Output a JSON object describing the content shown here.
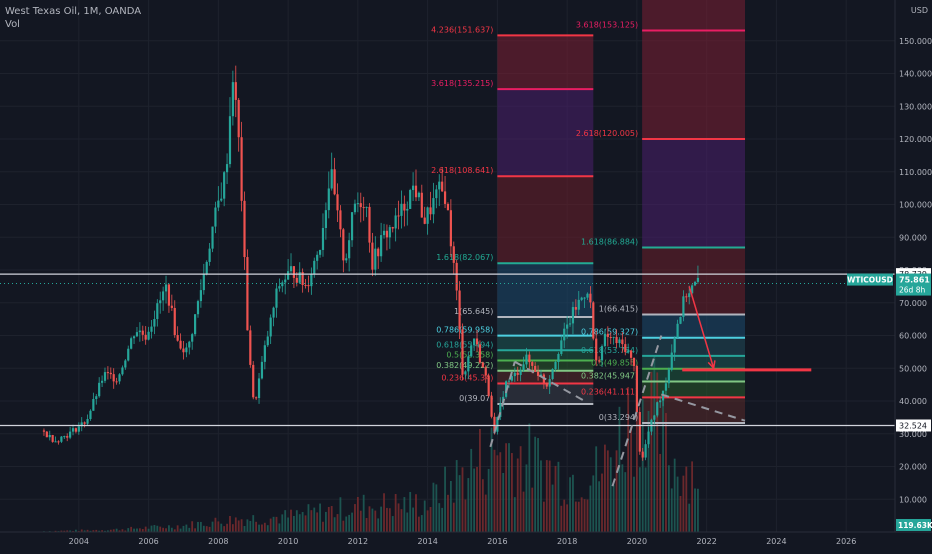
{
  "header": {
    "symbol_line": "West Texas Oil, 1M, OANDA",
    "volume_label": "Vol",
    "currency": "USD"
  },
  "chart_data": {
    "type": "candlestick",
    "ylim": [
      0,
      160
    ],
    "xlim": [
      2002.6,
      2027.4
    ],
    "yticks": [
      10,
      20,
      30,
      40,
      50,
      60,
      70,
      80,
      90,
      100,
      110,
      120,
      130,
      140,
      150
    ],
    "ytick_labels": [
      "10.000",
      "20.000",
      "30.000",
      "40.000",
      "50.000",
      "60.000",
      "70.000",
      "80.000",
      "90.000",
      "100.000",
      "110.000",
      "120.000",
      "130.000",
      "140.000",
      "150.000"
    ],
    "xticks": [
      2004,
      2006,
      2008,
      2010,
      2012,
      2014,
      2016,
      2018,
      2020,
      2022,
      2024,
      2026
    ],
    "xtick_labels": [
      "2004",
      "2006",
      "2008",
      "2010",
      "2012",
      "2014",
      "2016",
      "2018",
      "2020",
      "2022",
      "2024",
      "2026"
    ],
    "price_path": [
      [
        2003.0,
        31
      ],
      [
        2003.4,
        28
      ],
      [
        2003.8,
        30
      ],
      [
        2004.3,
        34
      ],
      [
        2004.8,
        48
      ],
      [
        2005.2,
        47
      ],
      [
        2005.7,
        62
      ],
      [
        2006.0,
        60
      ],
      [
        2006.6,
        75
      ],
      [
        2006.9,
        58
      ],
      [
        2007.2,
        55
      ],
      [
        2007.6,
        75
      ],
      [
        2007.9,
        92
      ],
      [
        2008.3,
        110
      ],
      [
        2008.5,
        140
      ],
      [
        2008.7,
        115
      ],
      [
        2008.9,
        65
      ],
      [
        2009.1,
        38
      ],
      [
        2009.4,
        55
      ],
      [
        2009.8,
        75
      ],
      [
        2010.2,
        80
      ],
      [
        2010.6,
        75
      ],
      [
        2011.0,
        88
      ],
      [
        2011.3,
        110
      ],
      [
        2011.7,
        82
      ],
      [
        2012.0,
        100
      ],
      [
        2012.3,
        102
      ],
      [
        2012.5,
        82
      ],
      [
        2012.8,
        90
      ],
      [
        2013.2,
        95
      ],
      [
        2013.7,
        106
      ],
      [
        2014.0,
        95
      ],
      [
        2014.4,
        104
      ],
      [
        2014.6,
        103
      ],
      [
        2014.9,
        75
      ],
      [
        2015.1,
        47
      ],
      [
        2015.4,
        60
      ],
      [
        2015.8,
        45
      ],
      [
        2016.0,
        30
      ],
      [
        2016.3,
        45
      ],
      [
        2016.6,
        48
      ],
      [
        2016.9,
        53
      ],
      [
        2017.3,
        48
      ],
      [
        2017.5,
        45
      ],
      [
        2017.9,
        58
      ],
      [
        2018.3,
        68
      ],
      [
        2018.7,
        75
      ],
      [
        2018.9,
        51
      ],
      [
        2019.2,
        60
      ],
      [
        2019.5,
        58
      ],
      [
        2019.8,
        56
      ],
      [
        2020.0,
        50
      ],
      [
        2020.2,
        20
      ],
      [
        2020.4,
        30
      ],
      [
        2020.7,
        40
      ],
      [
        2020.9,
        45
      ],
      [
        2021.2,
        62
      ],
      [
        2021.5,
        73
      ],
      [
        2021.8,
        75.861
      ]
    ],
    "volume_scale_max": 900,
    "volume_profile": [
      [
        2003.0,
        5
      ],
      [
        2005.0,
        15
      ],
      [
        2007.0,
        40
      ],
      [
        2008.5,
        80
      ],
      [
        2010.0,
        95
      ],
      [
        2012.0,
        160
      ],
      [
        2014.0,
        180
      ],
      [
        2015.5,
        450
      ],
      [
        2016.2,
        520
      ],
      [
        2018.0,
        340
      ],
      [
        2019.0,
        380
      ],
      [
        2020.2,
        900
      ],
      [
        2021.0,
        430
      ],
      [
        2021.7,
        380
      ]
    ],
    "horizontal_lines": [
      {
        "price": 78.739,
        "label": "78.739"
      },
      {
        "price": 32.524,
        "label": "32.524"
      }
    ],
    "last_price": {
      "symbol": "WTICOUSD",
      "price": "75.861",
      "countdown": "26d 8h",
      "value": 75.861
    },
    "volume_badge": "119.63K",
    "fib_extensions": [
      {
        "x0": 2016.0,
        "x1": 2018.75,
        "levels": [
          {
            "ratio": 4.236,
            "price": 151.637,
            "label": "4.236(151.637)",
            "color": "#f23645"
          },
          {
            "ratio": 3.618,
            "price": 135.215,
            "label": "3.618(135.215)",
            "color": "#e91e63"
          },
          {
            "ratio": 2.618,
            "price": 108.641,
            "label": "2.618(108.641)",
            "color": "#f23645"
          },
          {
            "ratio": 1.618,
            "price": 82.067,
            "label": "1.618(82.067)",
            "color": "#22ab94"
          },
          {
            "ratio": 1,
            "price": 65.645,
            "label": "1(65.645)",
            "color": "#b2b5be"
          },
          {
            "ratio": 0.786,
            "price": 59.958,
            "label": "0.786(59.958)",
            "color": "#4dd0e1"
          },
          {
            "ratio": 0.618,
            "price": 55.494,
            "label": "0.618(55.494)",
            "color": "#26a69a"
          },
          {
            "ratio": 0.5,
            "price": 52.358,
            "label": "0.5(52.358)",
            "color": "#4caf50"
          },
          {
            "ratio": 0.382,
            "price": 49.222,
            "label": "0.382(49.222)",
            "color": "#81c784"
          },
          {
            "ratio": 0.236,
            "price": 45.34,
            "label": "0.236(45.34)",
            "color": "#f23645"
          },
          {
            "ratio": 0,
            "price": 39.07,
            "label": "0(39.07)",
            "color": "#b2b5be"
          }
        ]
      },
      {
        "x0": 2020.15,
        "x1": 2023.1,
        "levels": [
          {
            "ratio": 3.618,
            "price": 153.125,
            "label": "3.618(153.125)",
            "color": "#e91e63"
          },
          {
            "ratio": 2.618,
            "price": 120.005,
            "label": "2.618(120.005)",
            "color": "#f23645"
          },
          {
            "ratio": 1.618,
            "price": 86.884,
            "label": "1.618(86.884)",
            "color": "#22ab94"
          },
          {
            "ratio": 1,
            "price": 66.415,
            "label": "1(66.415)",
            "color": "#b2b5be"
          },
          {
            "ratio": 0.786,
            "price": 59.327,
            "label": "0.786(59.327)",
            "color": "#4dd0e1"
          },
          {
            "ratio": 0.618,
            "price": 53.764,
            "label": "0.618(53.764)",
            "color": "#26a69a"
          },
          {
            "ratio": 0.5,
            "price": 49.855,
            "label": "0.5(49.855)",
            "color": "#4caf50"
          },
          {
            "ratio": 0.382,
            "price": 45.947,
            "label": "0.382(45.947)",
            "color": "#81c784"
          },
          {
            "ratio": 0.236,
            "price": 41.111,
            "label": "0.236(41.111)",
            "color": "#f23645"
          },
          {
            "ratio": 0,
            "price": 33.294,
            "label": "0(33.294)",
            "color": "#b2b5be"
          }
        ]
      }
    ],
    "trend_lines": [
      {
        "x0": 2015.8,
        "y0": 26,
        "x1": 2016.5,
        "y1": 52
      },
      {
        "x0": 2016.5,
        "y0": 52,
        "x1": 2018.5,
        "y1": 40
      },
      {
        "x0": 2019.3,
        "y0": 14,
        "x1": 2020.7,
        "y1": 60
      },
      {
        "x0": 2020.7,
        "y0": 42,
        "x1": 2023.1,
        "y1": 34
      }
    ],
    "target_line": {
      "x0": 2021.3,
      "x1": 2025.0,
      "price": 49.5
    },
    "arrow": {
      "x0": 2021.5,
      "y0": 75,
      "x1": 2022.2,
      "y1": 50
    }
  }
}
